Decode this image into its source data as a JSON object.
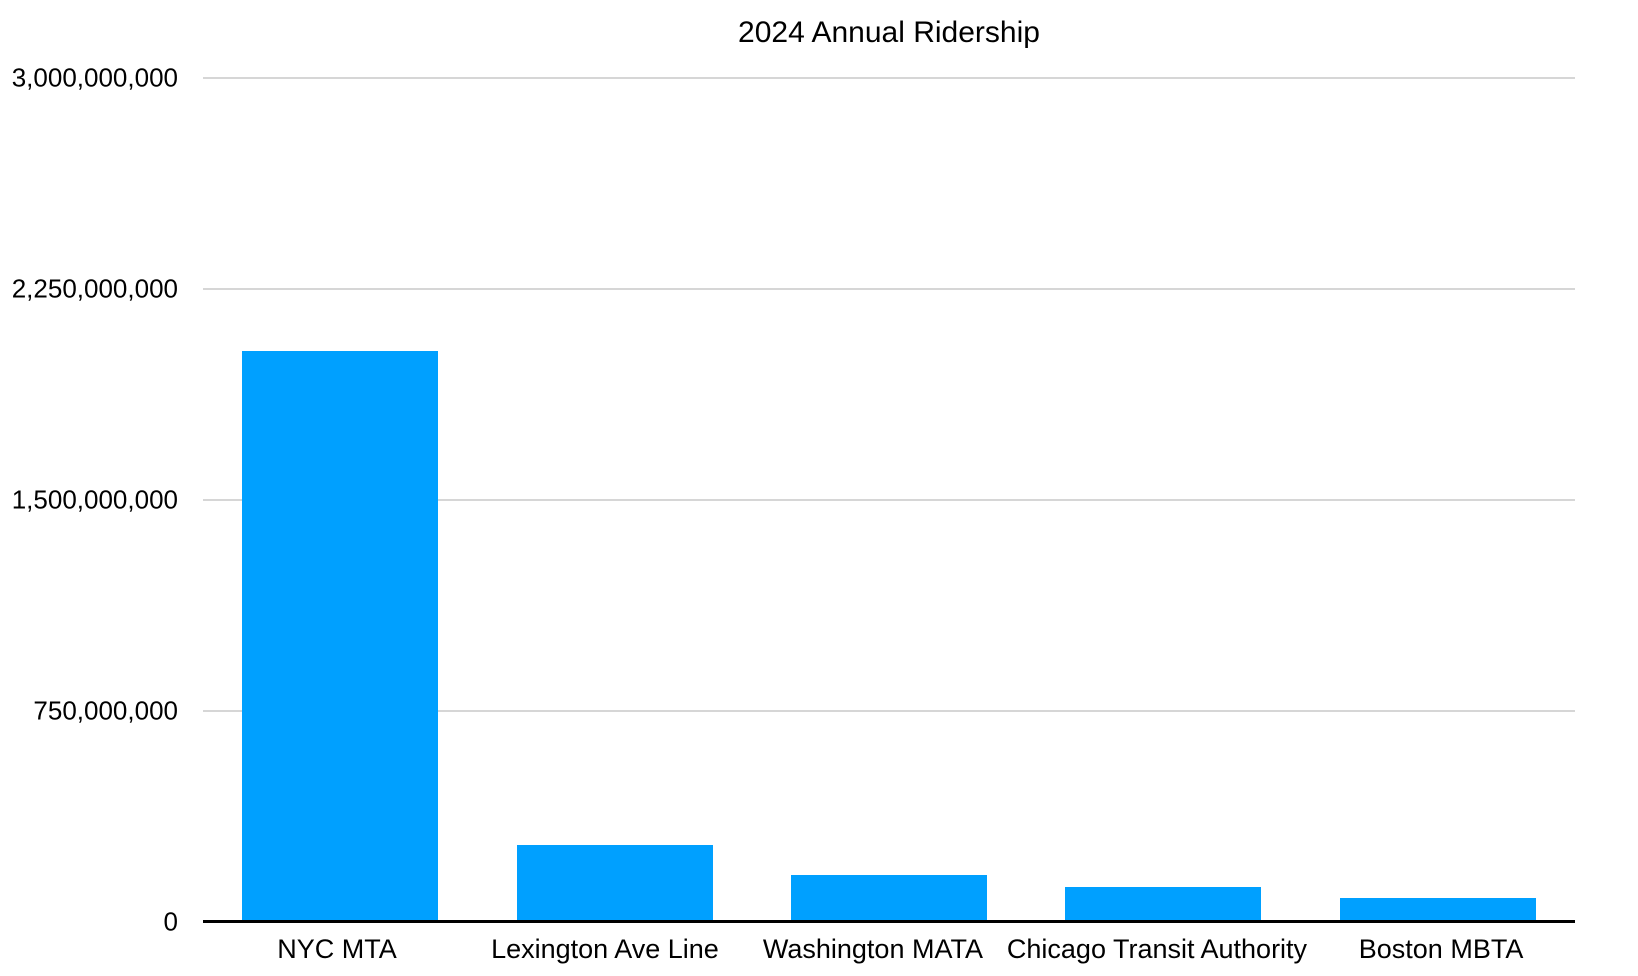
{
  "chart_data": {
    "type": "bar",
    "title": "2024 Annual Ridership",
    "categories": [
      "NYC MTA",
      "Lexington Ave Line",
      "Washington MATA",
      "Chicago Transit Authority",
      "Boston MBTA"
    ],
    "values": [
      2030000000,
      273000000,
      166000000,
      124000000,
      85000000
    ],
    "xlabel": "",
    "ylabel": "",
    "ylim": [
      0,
      3000000000
    ],
    "yticks": [
      {
        "value": 3000000000,
        "label": "3,000,000,000"
      },
      {
        "value": 2250000000,
        "label": "2,250,000,000"
      },
      {
        "value": 1500000000,
        "label": "1,500,000,000"
      },
      {
        "value": 750000000,
        "label": "750,000,000"
      },
      {
        "value": 0,
        "label": "0"
      }
    ],
    "grid": true,
    "legend": false,
    "colors": {
      "bar": "#00a0ff",
      "gridline": "#d6d6d6",
      "axis_line": "#000000",
      "text": "#000000",
      "background": "#ffffff"
    }
  }
}
